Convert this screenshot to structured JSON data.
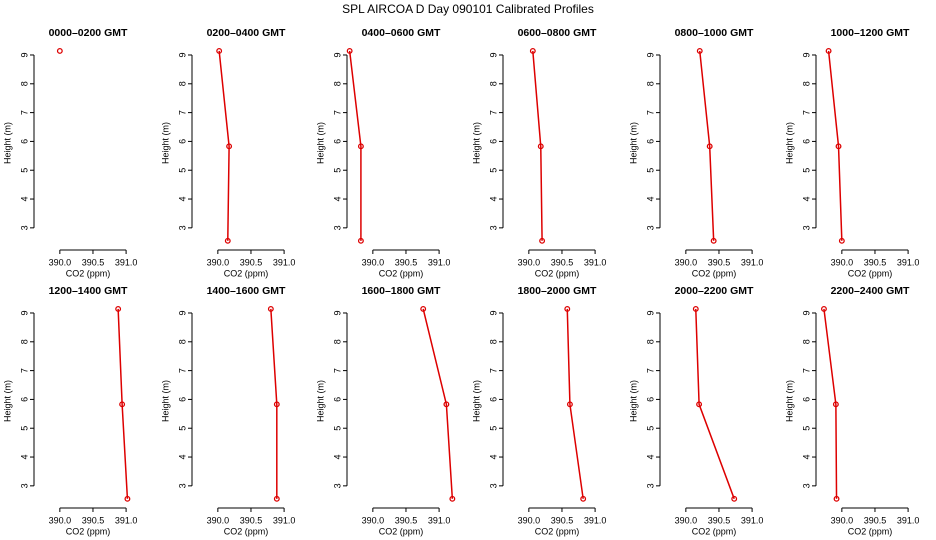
{
  "title": "SPL AIRCOA D  Day 090101  Calibrated Profiles",
  "chart_data": [
    {
      "type": "line",
      "title": "0000–0200 GMT",
      "xlabel": "CO2 (ppm)",
      "ylabel": "Height (m)",
      "color": "#dd0000",
      "x": [
        390.0
      ],
      "values": [
        9.14
      ],
      "xlim": [
        389.61,
        391.24
      ],
      "ylim": [
        2.37,
        9.52
      ],
      "xticks": [
        {
          "value": 390,
          "label": "390.0"
        },
        {
          "value": 390.5,
          "label": "390.5"
        },
        {
          "value": 391,
          "label": "391.0"
        }
      ],
      "yticks": [
        3,
        4,
        5,
        6,
        7,
        8,
        9
      ]
    },
    {
      "type": "line",
      "title": "0200–0400 GMT",
      "xlabel": "CO2 (ppm)",
      "ylabel": "Height (m)",
      "color": "#dd0000",
      "x": [
        390.02,
        390.17,
        390.15
      ],
      "values": [
        9.14,
        5.83,
        2.55
      ],
      "xlim": [
        389.61,
        391.24
      ],
      "ylim": [
        2.37,
        9.52
      ],
      "xticks": [
        {
          "value": 390,
          "label": "390.0"
        },
        {
          "value": 390.5,
          "label": "390.5"
        },
        {
          "value": 391,
          "label": "391.0"
        }
      ],
      "yticks": [
        3,
        4,
        5,
        6,
        7,
        8,
        9
      ]
    },
    {
      "type": "line",
      "title": "0400–0600 GMT",
      "xlabel": "CO2 (ppm)",
      "ylabel": "Height (m)",
      "color": "#dd0000",
      "x": [
        389.65,
        389.82,
        389.82
      ],
      "values": [
        9.14,
        5.83,
        2.55
      ],
      "xlim": [
        389.61,
        391.24
      ],
      "ylim": [
        2.37,
        9.52
      ],
      "xticks": [
        {
          "value": 390,
          "label": "390.0"
        },
        {
          "value": 390.5,
          "label": "390.5"
        },
        {
          "value": 391,
          "label": "391.0"
        }
      ],
      "yticks": [
        3,
        4,
        5,
        6,
        7,
        8,
        9
      ]
    },
    {
      "type": "line",
      "title": "0600–0800 GMT",
      "xlabel": "CO2 (ppm)",
      "ylabel": "Height (m)",
      "color": "#dd0000",
      "x": [
        390.06,
        390.18,
        390.2
      ],
      "values": [
        9.14,
        5.83,
        2.55
      ],
      "xlim": [
        389.61,
        391.24
      ],
      "ylim": [
        2.37,
        9.52
      ],
      "xticks": [
        {
          "value": 390,
          "label": "390.0"
        },
        {
          "value": 390.5,
          "label": "390.5"
        },
        {
          "value": 391,
          "label": "391.0"
        }
      ],
      "yticks": [
        3,
        4,
        5,
        6,
        7,
        8,
        9
      ]
    },
    {
      "type": "line",
      "title": "0800–1000 GMT",
      "xlabel": "CO2 (ppm)",
      "ylabel": "Height (m)",
      "color": "#dd0000",
      "x": [
        390.21,
        390.36,
        390.42
      ],
      "values": [
        9.14,
        5.83,
        2.55
      ],
      "xlim": [
        389.61,
        391.24
      ],
      "ylim": [
        2.37,
        9.52
      ],
      "xticks": [
        {
          "value": 390,
          "label": "390.0"
        },
        {
          "value": 390.5,
          "label": "390.5"
        },
        {
          "value": 391,
          "label": "391.0"
        }
      ],
      "yticks": [
        3,
        4,
        5,
        6,
        7,
        8,
        9
      ]
    },
    {
      "type": "line",
      "title": "1000–1200 GMT",
      "xlabel": "CO2 (ppm)",
      "ylabel": "Height (m)",
      "color": "#dd0000",
      "x": [
        389.8,
        389.95,
        390.0
      ],
      "values": [
        9.14,
        5.83,
        2.55
      ],
      "xlim": [
        389.61,
        391.24
      ],
      "ylim": [
        2.37,
        9.52
      ],
      "xticks": [
        {
          "value": 390,
          "label": "390.0"
        },
        {
          "value": 390.5,
          "label": "390.5"
        },
        {
          "value": 391,
          "label": "391.0"
        }
      ],
      "yticks": [
        3,
        4,
        5,
        6,
        7,
        8,
        9
      ]
    },
    {
      "type": "line",
      "title": "1200–1400 GMT",
      "xlabel": "CO2 (ppm)",
      "ylabel": "Height (m)",
      "color": "#dd0000",
      "x": [
        390.88,
        390.94,
        391.02
      ],
      "values": [
        9.14,
        5.83,
        2.55
      ],
      "xlim": [
        389.61,
        391.24
      ],
      "ylim": [
        2.37,
        9.52
      ],
      "xticks": [
        {
          "value": 390,
          "label": "390.0"
        },
        {
          "value": 390.5,
          "label": "390.5"
        },
        {
          "value": 391,
          "label": "391.0"
        }
      ],
      "yticks": [
        3,
        4,
        5,
        6,
        7,
        8,
        9
      ]
    },
    {
      "type": "line",
      "title": "1400–1600 GMT",
      "xlabel": "CO2 (ppm)",
      "ylabel": "Height (m)",
      "color": "#dd0000",
      "x": [
        390.8,
        390.89,
        390.89
      ],
      "values": [
        9.14,
        5.83,
        2.55
      ],
      "xlim": [
        389.61,
        391.24
      ],
      "ylim": [
        2.37,
        9.52
      ],
      "xticks": [
        {
          "value": 390,
          "label": "390.0"
        },
        {
          "value": 390.5,
          "label": "390.5"
        },
        {
          "value": 391,
          "label": "391.0"
        }
      ],
      "yticks": [
        3,
        4,
        5,
        6,
        7,
        8,
        9
      ]
    },
    {
      "type": "line",
      "title": "1600–1800 GMT",
      "xlabel": "CO2 (ppm)",
      "ylabel": "Height (m)",
      "color": "#dd0000",
      "x": [
        390.76,
        391.11,
        391.2
      ],
      "values": [
        9.14,
        5.83,
        2.55
      ],
      "xlim": [
        389.61,
        391.24
      ],
      "ylim": [
        2.37,
        9.52
      ],
      "xticks": [
        {
          "value": 390,
          "label": "390.0"
        },
        {
          "value": 390.5,
          "label": "390.5"
        },
        {
          "value": 391,
          "label": "391.0"
        }
      ],
      "yticks": [
        3,
        4,
        5,
        6,
        7,
        8,
        9
      ]
    },
    {
      "type": "line",
      "title": "1800–2000 GMT",
      "xlabel": "CO2 (ppm)",
      "ylabel": "Height (m)",
      "color": "#dd0000",
      "x": [
        390.58,
        390.62,
        390.82
      ],
      "values": [
        9.14,
        5.83,
        2.55
      ],
      "xlim": [
        389.61,
        391.24
      ],
      "ylim": [
        2.37,
        9.52
      ],
      "xticks": [
        {
          "value": 390,
          "label": "390.0"
        },
        {
          "value": 390.5,
          "label": "390.5"
        },
        {
          "value": 391,
          "label": "391.0"
        }
      ],
      "yticks": [
        3,
        4,
        5,
        6,
        7,
        8,
        9
      ]
    },
    {
      "type": "line",
      "title": "2000–2200 GMT",
      "xlabel": "CO2 (ppm)",
      "ylabel": "Height (m)",
      "color": "#dd0000",
      "x": [
        390.15,
        390.2,
        390.73
      ],
      "values": [
        9.14,
        5.83,
        2.55
      ],
      "xlim": [
        389.61,
        391.24
      ],
      "ylim": [
        2.37,
        9.52
      ],
      "xticks": [
        {
          "value": 390,
          "label": "390.0"
        },
        {
          "value": 390.5,
          "label": "390.5"
        },
        {
          "value": 391,
          "label": "391.0"
        }
      ],
      "yticks": [
        3,
        4,
        5,
        6,
        7,
        8,
        9
      ]
    },
    {
      "type": "line",
      "title": "2200–2400 GMT",
      "xlabel": "CO2 (ppm)",
      "ylabel": "Height (m)",
      "color": "#dd0000",
      "x": [
        389.73,
        389.91,
        389.92
      ],
      "values": [
        9.14,
        5.83,
        2.55
      ],
      "xlim": [
        389.61,
        391.24
      ],
      "ylim": [
        2.37,
        9.52
      ],
      "xticks": [
        {
          "value": 390,
          "label": "390.0"
        },
        {
          "value": 390.5,
          "label": "390.5"
        },
        {
          "value": 391,
          "label": "391.0"
        }
      ],
      "yticks": [
        3,
        4,
        5,
        6,
        7,
        8,
        9
      ]
    }
  ]
}
